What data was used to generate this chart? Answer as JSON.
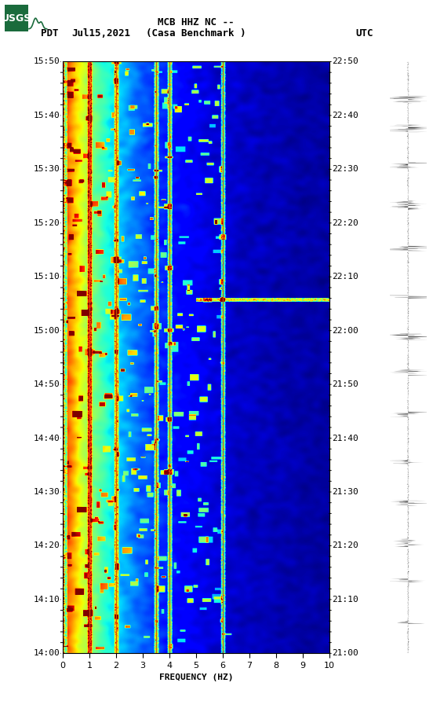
{
  "title_line1": "MCB HHZ NC --",
  "title_line2": "(Casa Benchmark )",
  "date_label": "Jul15,2021",
  "left_timezone": "PDT",
  "right_timezone": "UTC",
  "left_times": [
    "14:00",
    "14:10",
    "14:20",
    "14:30",
    "14:40",
    "14:50",
    "15:00",
    "15:10",
    "15:20",
    "15:30",
    "15:40",
    "15:50"
  ],
  "right_times": [
    "21:00",
    "21:10",
    "21:20",
    "21:30",
    "21:40",
    "21:50",
    "22:00",
    "22:10",
    "22:20",
    "22:30",
    "22:40",
    "22:50"
  ],
  "freq_min": 0,
  "freq_max": 10,
  "freq_ticks": [
    0,
    1,
    2,
    3,
    4,
    5,
    6,
    7,
    8,
    9,
    10
  ],
  "freq_label": "FREQUENCY (HZ)",
  "vertical_lines_freq": [
    1.0,
    2.0,
    3.5,
    4.0,
    6.0
  ],
  "spectrogram_seed": 42,
  "n_time": 660,
  "n_freq": 300,
  "bg_color": "#ffffff",
  "usgs_green": "#1a6b3c",
  "colormap": "jet"
}
